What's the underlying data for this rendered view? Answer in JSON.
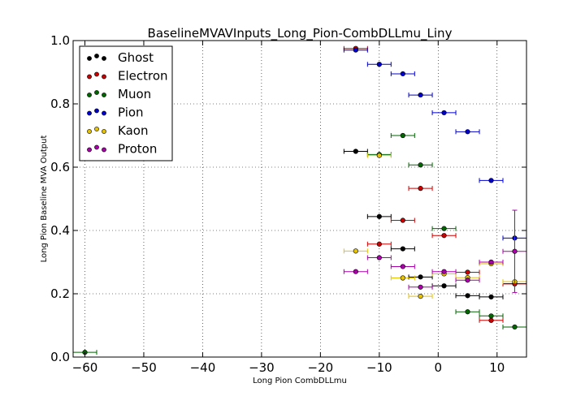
{
  "chart_data": {
    "type": "scatter",
    "title": "BaselineMVAVInputs_Long_Pion-CombDLLmu_Liny",
    "xlabel": "Long Pion CombDLLmu",
    "ylabel": "Long Pion Baseline MVA Output",
    "xlim": [
      -62,
      15
    ],
    "ylim": [
      0.0,
      1.0
    ],
    "x_ticks": [
      -60,
      -50,
      -40,
      -30,
      -20,
      -10,
      0,
      10
    ],
    "y_ticks": [
      0.0,
      0.2,
      0.4,
      0.6,
      0.8,
      1.0
    ],
    "x_tick_labels": [
      "−60",
      "−50",
      "−40",
      "−30",
      "−20",
      "−10",
      "0",
      "10"
    ],
    "y_tick_labels": [
      "0.0",
      "0.2",
      "0.4",
      "0.6",
      "0.8",
      "1.0"
    ],
    "grid": true,
    "legend_position": "top-left",
    "series": [
      {
        "name": "Ghost",
        "color": "#000000",
        "xerr": 2.0,
        "points": [
          [
            -14,
            0.65
          ],
          [
            -10,
            0.444
          ],
          [
            -6,
            0.342
          ],
          [
            -3,
            0.253
          ],
          [
            1,
            0.225
          ],
          [
            5,
            0.194
          ],
          [
            9,
            0.19
          ],
          [
            13,
            0.232
          ]
        ]
      },
      {
        "name": "Electron",
        "color": "#cc0000",
        "xerr": 2.0,
        "points": [
          [
            -14,
            0.975
          ],
          [
            -10,
            0.357
          ],
          [
            -6,
            0.432
          ],
          [
            -3,
            0.533
          ],
          [
            1,
            0.384
          ],
          [
            5,
            0.268
          ],
          [
            9,
            0.116
          ],
          [
            13,
            0.231
          ]
        ]
      },
      {
        "name": "Muon",
        "color": "#006600",
        "xerr": 2.0,
        "points": [
          [
            -60,
            0.015
          ],
          [
            -10,
            0.64
          ],
          [
            -6,
            0.7
          ],
          [
            -3,
            0.607
          ],
          [
            1,
            0.406
          ],
          [
            5,
            0.143
          ],
          [
            9,
            0.13
          ],
          [
            13,
            0.095
          ]
        ]
      },
      {
        "name": "Pion",
        "color": "#0000cc",
        "xerr": 2.0,
        "points": [
          [
            -14,
            0.97
          ],
          [
            -10,
            0.925
          ],
          [
            -6,
            0.895
          ],
          [
            -3,
            0.828
          ],
          [
            1,
            0.772
          ],
          [
            5,
            0.712
          ],
          [
            9,
            0.558
          ],
          [
            13,
            0.376
          ]
        ]
      },
      {
        "name": "Kaon",
        "color": "#e6c200",
        "xerr": 2.0,
        "points": [
          [
            -14,
            0.335
          ],
          [
            -10,
            0.637
          ],
          [
            -6,
            0.25
          ],
          [
            -3,
            0.192
          ],
          [
            1,
            0.263
          ],
          [
            5,
            0.251
          ],
          [
            9,
            0.295
          ],
          [
            13,
            0.238
          ]
        ]
      },
      {
        "name": "Proton",
        "color": "#aa00aa",
        "xerr": 2.0,
        "points": [
          [
            -14,
            0.27
          ],
          [
            -10,
            0.314
          ],
          [
            -6,
            0.286
          ],
          [
            -3,
            0.221
          ],
          [
            1,
            0.27
          ],
          [
            5,
            0.243
          ],
          [
            9,
            0.3
          ],
          [
            13,
            0.334
          ]
        ],
        "yerr": [
          0,
          0,
          0,
          0,
          0,
          0,
          0,
          0.13
        ]
      }
    ]
  }
}
